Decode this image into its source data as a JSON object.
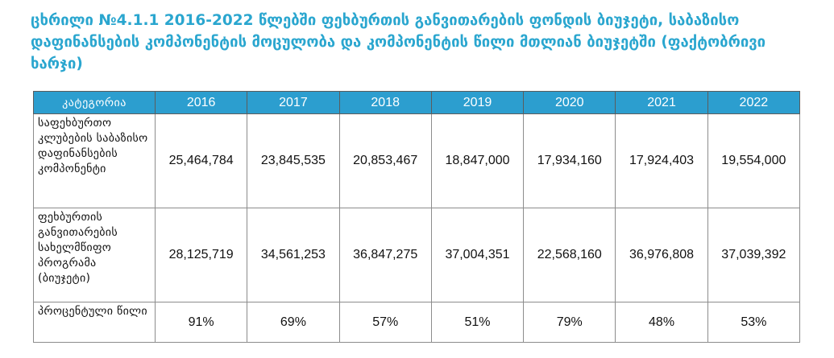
{
  "caption": "ცხრილი №4.1.1 2016-2022 წლებში ფეხბურთის განვითარების ფონდის ბიუჯეტი, საბაზისო დაფინანსების კომპონენტის მოცულობა და კომპონენტის წილი მთლიან ბიუჯეტში (ფაქტობრივი ხარჯი)",
  "table": {
    "header": {
      "category": "კატეგორია",
      "years": [
        "2016",
        "2017",
        "2018",
        "2019",
        "2020",
        "2021",
        "2022"
      ]
    },
    "rows": [
      {
        "label": "საფეხბურთო კლუბების საბაზისო დაფინანსების კომპონენტი",
        "values": [
          "25,464,784",
          "23,845,535",
          "20,853,467",
          "18,847,000",
          "17,934,160",
          "17,924,403",
          "19,554,000"
        ]
      },
      {
        "label": "ფეხბურთის განვითარების სახელმწიფო პროგრამა (ბიუჯეტი)",
        "values": [
          "28,125,719",
          "34,561,253",
          "36,847,275",
          "37,004,351",
          "22,568,160",
          "36,976,808",
          "37,039,392"
        ]
      },
      {
        "label": "პროცენტული წილი",
        "values": [
          "91%",
          "69%",
          "57%",
          "51%",
          "79%",
          "48%",
          "53%"
        ]
      }
    ]
  }
}
